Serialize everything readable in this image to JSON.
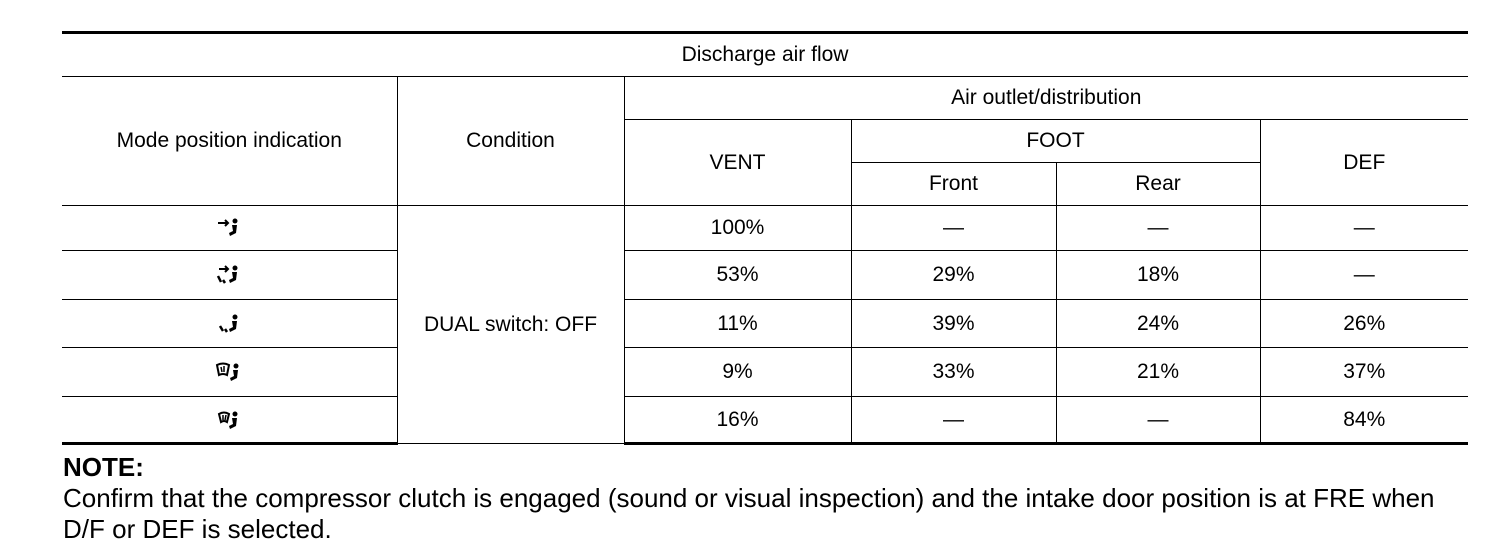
{
  "table": {
    "title": "Discharge air flow",
    "headers": {
      "mode": "Mode position indication",
      "condition": "Condition",
      "outlet_group": "Air outlet/distribution",
      "vent": "VENT",
      "foot": "FOOT",
      "front": "Front",
      "rear": "Rear",
      "def": "DEF"
    },
    "condition_value": "DUAL switch: OFF",
    "rows": [
      {
        "icon": "vent-mode-icon",
        "vent": "100%",
        "front": "—",
        "rear": "—",
        "def": "—"
      },
      {
        "icon": "bi-level-mode-icon",
        "vent": "53%",
        "front": "29%",
        "rear": "18%",
        "def": "—"
      },
      {
        "icon": "foot-mode-icon",
        "vent": "11%",
        "front": "39%",
        "rear": "24%",
        "def": "26%"
      },
      {
        "icon": "foot-defrost-mode-icon",
        "vent": "9%",
        "front": "33%",
        "rear": "21%",
        "def": "37%"
      },
      {
        "icon": "defrost-mode-icon",
        "vent": "16%",
        "front": "—",
        "rear": "—",
        "def": "84%"
      }
    ]
  },
  "note": {
    "title": "NOTE:",
    "text": "Confirm that the compressor clutch is engaged (sound or visual inspection) and the intake door position is at FRE when D/F or DEF is selected."
  }
}
